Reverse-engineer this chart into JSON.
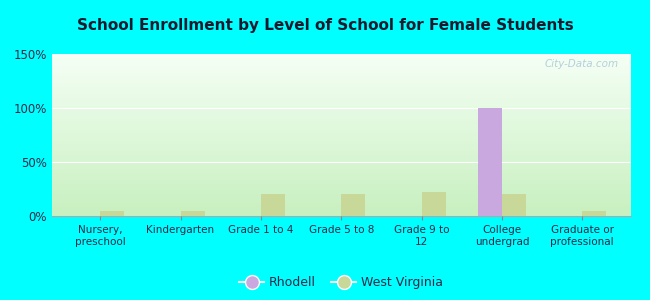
{
  "title": "School Enrollment by Level of School for Female Students",
  "categories": [
    "Nursery,\npreschool",
    "Kindergarten",
    "Grade 1 to 4",
    "Grade 5 to 8",
    "Grade 9 to\n12",
    "College\nundergrad",
    "Graduate or\nprofessional"
  ],
  "rhodell_values": [
    0,
    0,
    0,
    0,
    0,
    100,
    0
  ],
  "wv_values": [
    5,
    5,
    20,
    20,
    22,
    20,
    5
  ],
  "rhodell_color": "#c8a8df",
  "wv_color": "#c8d898",
  "grad_top": "#f5fff5",
  "grad_bottom": "#c8f0c0",
  "outer_bg": "#00ffff",
  "ylim": [
    0,
    150
  ],
  "yticks": [
    0,
    50,
    100,
    150
  ],
  "ytick_labels": [
    "0%",
    "50%",
    "100%",
    "150%"
  ],
  "bar_width": 0.3,
  "watermark": "City-Data.com",
  "legend_labels": [
    "Rhodell",
    "West Virginia"
  ],
  "grid_color": "#ffffff",
  "title_color": "#1a1a2e",
  "tick_color": "#2a2a4a"
}
